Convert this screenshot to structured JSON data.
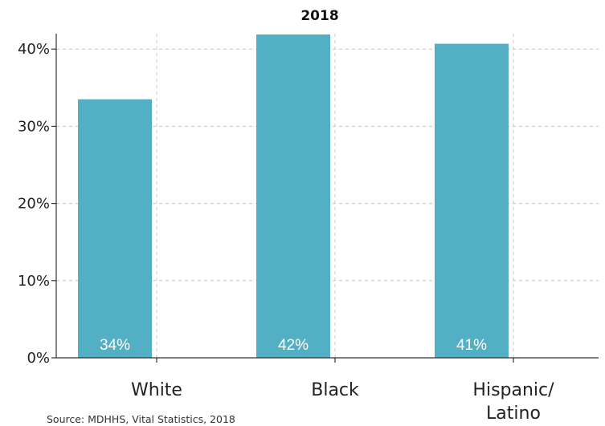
{
  "chart_data": {
    "type": "bar",
    "title": "2018",
    "categories": [
      "White",
      "Black",
      "Hispanic/\nLatino"
    ],
    "values": [
      33.5,
      41.9,
      40.7
    ],
    "data_labels": [
      "34%",
      "42%",
      "41%"
    ],
    "yticks": [
      0,
      10,
      20,
      30,
      40
    ],
    "ytick_labels": [
      "0%",
      "10%",
      "20%",
      "30%",
      "40%"
    ],
    "ylim": [
      0,
      42
    ],
    "xlabel": "",
    "ylabel": "",
    "grid": true,
    "bar_color": "#53b0c4"
  },
  "source": "Source: MDHHS, Vital Statistics, 2018"
}
